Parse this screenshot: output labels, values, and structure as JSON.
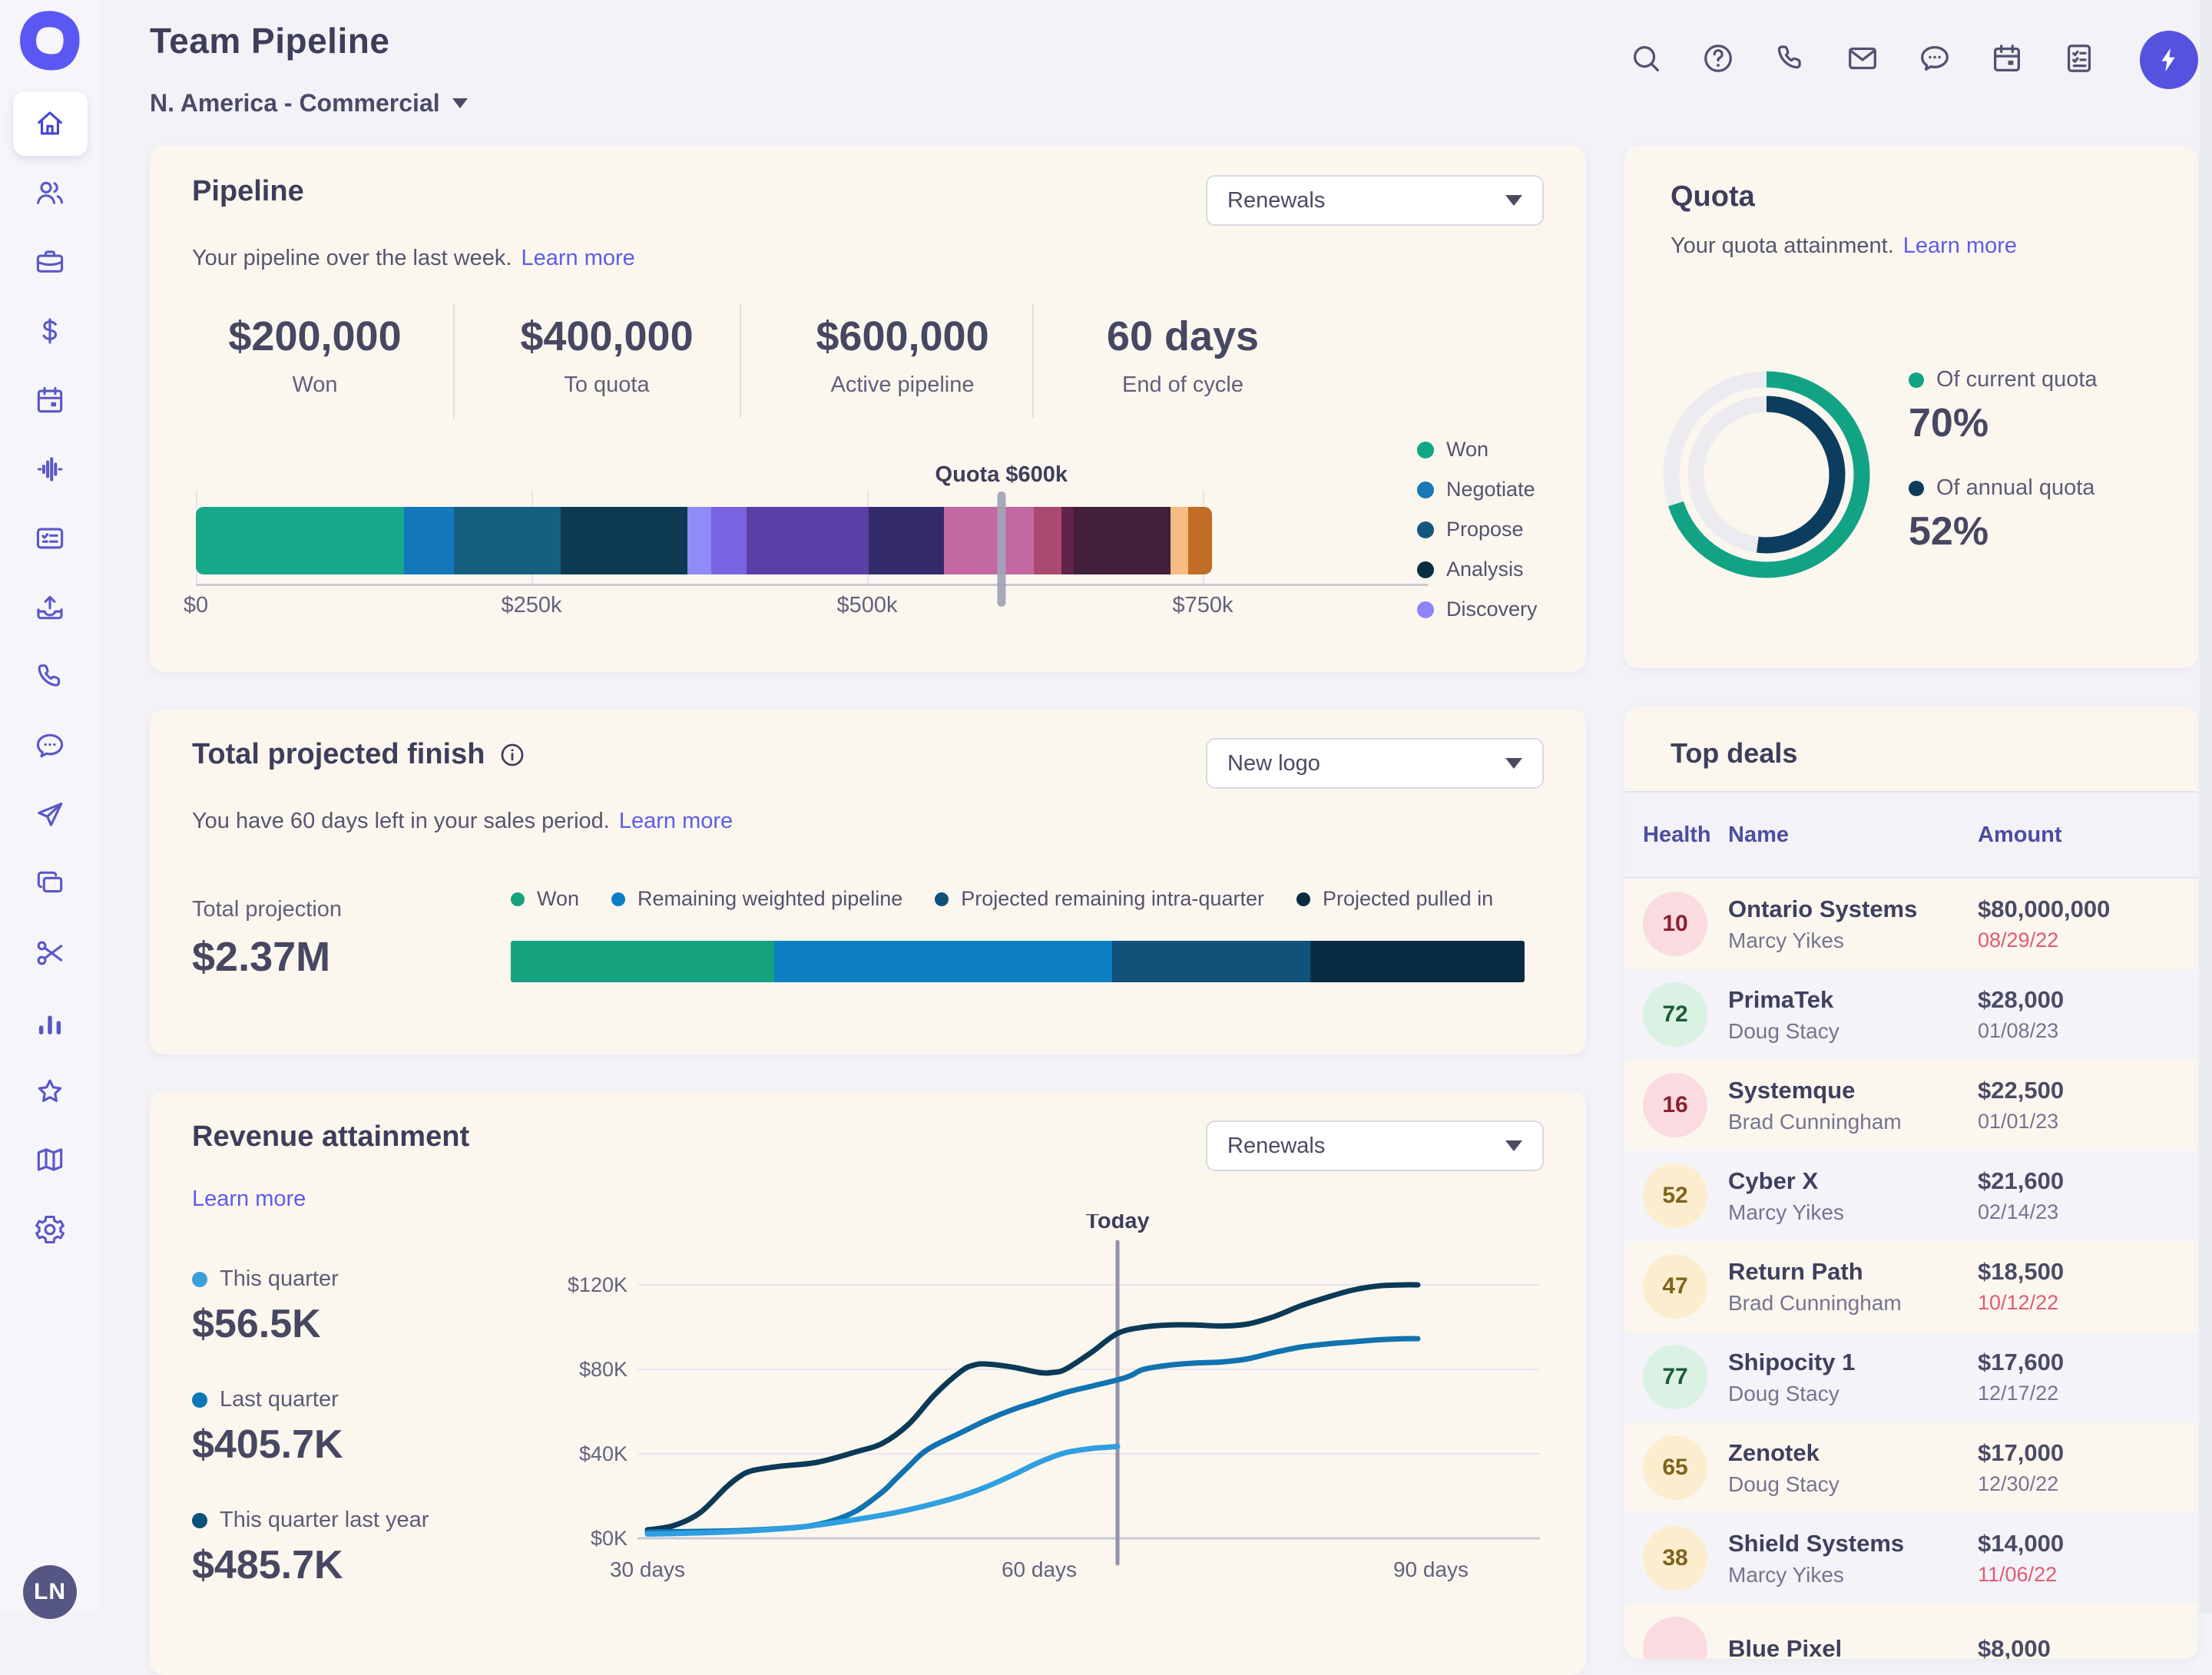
{
  "header": {
    "title": "Team Pipeline",
    "team_selector": "N. America - Commercial",
    "action_icons": [
      "search",
      "help",
      "phone",
      "mail",
      "chat",
      "calendar",
      "tasks"
    ],
    "boost_icon": "lightning"
  },
  "sidebar": {
    "items": [
      "home",
      "people",
      "briefcase",
      "dollar",
      "calendar",
      "activity",
      "task-card",
      "inbox-upload",
      "phone",
      "chat",
      "send",
      "copy",
      "scissors",
      "bar-chart",
      "star",
      "map",
      "settings"
    ],
    "active": "home",
    "avatar_initials": "LN"
  },
  "pipeline": {
    "title": "Pipeline",
    "filter_value": "Renewals",
    "subtitle": "Your pipeline over the last week.",
    "learn_more": "Learn more",
    "stats": [
      {
        "value": "$200,000",
        "label": "Won"
      },
      {
        "value": "$400,000",
        "label": "To quota"
      },
      {
        "value": "$600,000",
        "label": "Active pipeline"
      },
      {
        "value": "60 days",
        "label": "End of cycle"
      }
    ],
    "quota_marker": {
      "label": "Quota $600k",
      "value_k": 600
    },
    "chart_data": {
      "type": "bar",
      "stacked": true,
      "x_ticks": [
        {
          "label": "$0",
          "value_k": 0
        },
        {
          "label": "$250k",
          "value_k": 250
        },
        {
          "label": "$500k",
          "value_k": 500
        },
        {
          "label": "$750k",
          "value_k": 750
        }
      ],
      "segments": [
        {
          "stage": "Won",
          "value_k": 155,
          "color": "#18a98b"
        },
        {
          "stage": "Negotiate",
          "value_k": 37,
          "color": "#1478bd"
        },
        {
          "stage": "Propose",
          "value_k": 80,
          "color": "#15607f"
        },
        {
          "stage": "Analysis",
          "value_k": 94,
          "color": "#0d3a52"
        },
        {
          "stage": "Discovery",
          "value_k": 18,
          "color": "#8f8cf8"
        },
        {
          "stage": "",
          "value_k": 26,
          "color": "#7a64e2"
        },
        {
          "stage": "",
          "value_k": 91,
          "color": "#5b3fa8"
        },
        {
          "stage": "",
          "value_k": 56,
          "color": "#332a6b"
        },
        {
          "stage": "",
          "value_k": 67,
          "color": "#c468a1"
        },
        {
          "stage": "",
          "value_k": 21,
          "color": "#ab4a6e"
        },
        {
          "stage": "",
          "value_k": 9,
          "color": "#63224a"
        },
        {
          "stage": "",
          "value_k": 72,
          "color": "#421f3b"
        },
        {
          "stage": "",
          "value_k": 13,
          "color": "#f6bb82"
        },
        {
          "stage": "",
          "value_k": 18,
          "color": "#c26d25"
        }
      ],
      "legend": [
        {
          "label": "Won",
          "color": "#10a887"
        },
        {
          "label": "Negotiate",
          "color": "#1878b8"
        },
        {
          "label": "Propose",
          "color": "#14577d"
        },
        {
          "label": "Analysis",
          "color": "#0a2e42"
        },
        {
          "label": "Discovery",
          "color": "#8b85f8"
        }
      ]
    }
  },
  "projection": {
    "title": "Total projected finish",
    "filter_value": "New logo",
    "subtitle": "You have 60 days left in your sales period.",
    "learn_more": "Learn more",
    "total_label": "Total projection",
    "total_value": "$2.37M",
    "chart_data": {
      "type": "bar",
      "stacked": true,
      "segments": [
        {
          "label": "Won",
          "pct": 26.0,
          "color": "#15a27f"
        },
        {
          "label": "Remaining weighted pipeline",
          "pct": 33.3,
          "color": "#0b7fc2"
        },
        {
          "label": "Projected remaining intra-quarter",
          "pct": 19.6,
          "color": "#11527a"
        },
        {
          "label": "Projected pulled in",
          "pct": 21.1,
          "color": "#0a2c42"
        }
      ]
    }
  },
  "revenue": {
    "title": "Revenue attainment",
    "filter_value": "Renewals",
    "learn_more": "Learn more",
    "stats": [
      {
        "label": "This quarter",
        "value": "$56.5K",
        "color": "#3aa0dc"
      },
      {
        "label": "Last quarter",
        "value": "$405.7K",
        "color": "#0c77b8"
      },
      {
        "label": "This quarter last year",
        "value": "$485.7K",
        "color": "#0a517c"
      }
    ],
    "chart_data": {
      "type": "line",
      "today_label": "Today",
      "today_day": 66,
      "x_ticks": [
        {
          "label": "30 days",
          "day": 30
        },
        {
          "label": "60 days",
          "day": 60
        },
        {
          "label": "90 days",
          "day": 90
        }
      ],
      "y_ticks": [
        {
          "label": "$0K",
          "value": 0
        },
        {
          "label": "$40K",
          "value": 40
        },
        {
          "label": "$80K",
          "value": 80
        },
        {
          "label": "$120K",
          "value": 120
        }
      ],
      "x_range": [
        30,
        92
      ],
      "y_range": [
        0,
        132
      ],
      "series": [
        {
          "name": "This quarter last year",
          "color": "#0b3a57",
          "points": [
            [
              30,
              4
            ],
            [
              32,
              6
            ],
            [
              34,
              12
            ],
            [
              36,
              24
            ],
            [
              37,
              29
            ],
            [
              38,
              32
            ],
            [
              40,
              34
            ],
            [
              43,
              36
            ],
            [
              46,
              41
            ],
            [
              48,
              45
            ],
            [
              50,
              54
            ],
            [
              52,
              68
            ],
            [
              54,
              79
            ],
            [
              55,
              82
            ],
            [
              56,
              82.5
            ],
            [
              58,
              81
            ],
            [
              60,
              78.5
            ],
            [
              61,
              78.5
            ],
            [
              62,
              80
            ],
            [
              64,
              88
            ],
            [
              66,
              97
            ],
            [
              68,
              100
            ],
            [
              70,
              101
            ],
            [
              72,
              101
            ],
            [
              74,
              100.5
            ],
            [
              76,
              101.5
            ],
            [
              78,
              105
            ],
            [
              80,
              110
            ],
            [
              82,
              114
            ],
            [
              84,
              117.5
            ],
            [
              86,
              119.5
            ],
            [
              88,
              120
            ],
            [
              89,
              120
            ]
          ]
        },
        {
          "name": "Last quarter",
          "color": "#1173b0",
          "points": [
            [
              30,
              3
            ],
            [
              33,
              3.2
            ],
            [
              36,
              3.5
            ],
            [
              39,
              4.2
            ],
            [
              42,
              5.5
            ],
            [
              44,
              8
            ],
            [
              46,
              13
            ],
            [
              48,
              22
            ],
            [
              49,
              28
            ],
            [
              50,
              34
            ],
            [
              51,
              40
            ],
            [
              52,
              44
            ],
            [
              54,
              50
            ],
            [
              56,
              56
            ],
            [
              58,
              61
            ],
            [
              60,
              65
            ],
            [
              62,
              69
            ],
            [
              64,
              72
            ],
            [
              66,
              75
            ],
            [
              67,
              77
            ],
            [
              68,
              80
            ],
            [
              70,
              82
            ],
            [
              72,
              83
            ],
            [
              74,
              83.5
            ],
            [
              76,
              85
            ],
            [
              78,
              88
            ],
            [
              80,
              90.5
            ],
            [
              82,
              92
            ],
            [
              84,
              93
            ],
            [
              86,
              94
            ],
            [
              88,
              94.5
            ],
            [
              89,
              94.5
            ]
          ]
        },
        {
          "name": "This quarter",
          "color": "#2f9fe0",
          "points": [
            [
              30,
              2
            ],
            [
              33,
              2.4
            ],
            [
              36,
              3
            ],
            [
              39,
              4
            ],
            [
              42,
              5.5
            ],
            [
              45,
              8
            ],
            [
              48,
              11
            ],
            [
              50,
              13.5
            ],
            [
              52,
              16.5
            ],
            [
              54,
              20
            ],
            [
              56,
              24.5
            ],
            [
              58,
              30
            ],
            [
              60,
              36
            ],
            [
              62,
              40.5
            ],
            [
              64,
              42.5
            ],
            [
              65,
              43
            ],
            [
              66,
              43.5
            ]
          ]
        }
      ]
    }
  },
  "quota": {
    "title": "Quota",
    "subtitle": "Your quota attainment.",
    "learn_more": "Learn more",
    "chart_data": {
      "type": "donut",
      "track_color": "#ebebf0",
      "rings": [
        {
          "label": "Of current quota",
          "pct": 70,
          "value_text": "70%",
          "color": "#12a385"
        },
        {
          "label": "Of annual quota",
          "pct": 52,
          "value_text": "52%",
          "color": "#0c3d5e"
        }
      ]
    }
  },
  "top_deals": {
    "title": "Top deals",
    "columns": [
      "Health",
      "Name",
      "Amount"
    ],
    "health_colors": {
      "bad": {
        "bg": "#fadbe0",
        "fg": "#8c2030"
      },
      "warn": {
        "bg": "#fcedcf",
        "fg": "#7d641d"
      },
      "good": {
        "bg": "#daf2e4",
        "fg": "#1d5c38"
      }
    },
    "rows": [
      {
        "health": "10",
        "health_level": "bad",
        "name": "Ontario Systems",
        "owner": "Marcy Yikes",
        "amount": "$80,000,000",
        "date": "08/29/22",
        "date_overdue": true
      },
      {
        "health": "72",
        "health_level": "good",
        "name": "PrimaTek",
        "owner": "Doug Stacy",
        "amount": "$28,000",
        "date": "01/08/23",
        "date_overdue": false
      },
      {
        "health": "16",
        "health_level": "bad",
        "name": "Systemque",
        "owner": "Brad Cunningham",
        "amount": "$22,500",
        "date": "01/01/23",
        "date_overdue": false
      },
      {
        "health": "52",
        "health_level": "warn",
        "name": "Cyber X",
        "owner": "Marcy Yikes",
        "amount": "$21,600",
        "date": "02/14/23",
        "date_overdue": false
      },
      {
        "health": "47",
        "health_level": "warn",
        "name": "Return Path",
        "owner": "Brad Cunningham",
        "amount": "$18,500",
        "date": "10/12/22",
        "date_overdue": true
      },
      {
        "health": "77",
        "health_level": "good",
        "name": "Shipocity 1",
        "owner": "Doug Stacy",
        "amount": "$17,600",
        "date": "12/17/22",
        "date_overdue": false
      },
      {
        "health": "65",
        "health_level": "warn",
        "name": "Zenotek",
        "owner": "Doug Stacy",
        "amount": "$17,000",
        "date": "12/30/22",
        "date_overdue": false
      },
      {
        "health": "38",
        "health_level": "warn",
        "name": "Shield Systems",
        "owner": "Marcy Yikes",
        "amount": "$14,000",
        "date": "11/06/22",
        "date_overdue": true
      },
      {
        "health": "",
        "health_level": "bad",
        "name": "Blue Pixel",
        "owner": "",
        "amount": "$8,000",
        "date": "",
        "date_overdue": false
      }
    ]
  }
}
